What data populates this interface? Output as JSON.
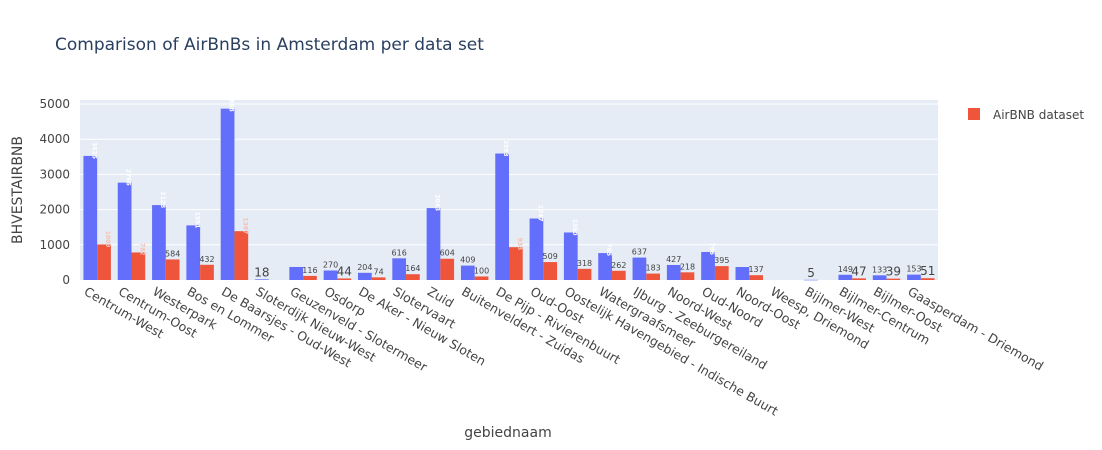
{
  "chart_data": {
    "type": "bar",
    "title": "Comparison of AirBnBs in Amsterdam per data set",
    "xlabel": "gebiednaam",
    "ylabel": "BHVESTAIRBNB",
    "ylim": [
      0,
      5000
    ],
    "yticks": [
      0,
      1000,
      2000,
      3000,
      4000,
      5000
    ],
    "grid": true,
    "legend_position": "top-right",
    "colors": {
      "series1": "#636efa",
      "series2": "#ef553b",
      "plot_bg": "#e5ecf6",
      "grid": "#ffffff"
    },
    "categories": [
      "Centrum-West",
      "Centrum-Oost",
      "Westerpark",
      "Bos en Lommer",
      "De Baarsjes - Oud-West",
      "Sloterdijk Nieuw-West",
      "Geuzenveld - Slotermeer",
      "Osdorp",
      "De Aker - Nieuw Sloten",
      "Slotervaart",
      "Zuid",
      "Buitenveldert - Zuidas",
      "De Pijp - Rivierenbuurt",
      "Oud-Oost",
      "Oostelijk Havengebied - Indische Buurt",
      "Watergraafsmeer",
      "IJburg - Zeeburgereiland",
      "Noord-West",
      "Oud-Noord",
      "Noord-Oost",
      "Weesp, Driemond",
      "Bijlmer-West",
      "Bijlmer-Centrum",
      "Bijlmer-Oost",
      "Gaasperdam - Driemond"
    ],
    "series": [
      {
        "name": "",
        "values": [
          3525,
          2766,
          2128,
          1551,
          4868,
          18,
          370,
          270,
          204,
          616,
          2043,
          409,
          3593,
          1747,
          1350,
          765,
          637,
          427,
          796,
          369,
          0,
          5,
          149,
          133,
          153
        ],
        "labels": [
          "3525",
          "2766",
          "2128",
          "1551",
          "4868",
          "18",
          "",
          "270",
          "204",
          "616",
          "2043",
          "409",
          "3593",
          "1747",
          "1350",
          "765",
          "637",
          "427",
          "796",
          "",
          "",
          "5",
          "149",
          "133",
          "153"
        ]
      },
      {
        "name": "AirBNB dataset",
        "values": [
          1009,
          782,
          584,
          432,
          1387,
          0,
          116,
          44,
          74,
          164,
          604,
          100,
          933,
          509,
          318,
          262,
          183,
          218,
          395,
          137,
          0,
          0,
          47,
          39,
          51
        ],
        "labels": [
          "1009",
          "782",
          "584",
          "432",
          "1387",
          "",
          "116",
          "44",
          "74",
          "164",
          "604",
          "100",
          "933",
          "509",
          "318",
          "262",
          "183",
          "218",
          "395",
          "137",
          "",
          "",
          "47",
          "39",
          "51"
        ]
      }
    ]
  }
}
